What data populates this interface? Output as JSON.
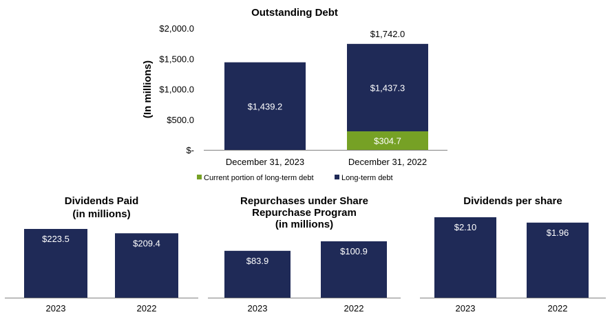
{
  "colors": {
    "navy": "#1f2a57",
    "green": "#76a125",
    "axis": "#808080"
  },
  "chart_data": [
    {
      "type": "bar",
      "stacked": true,
      "title": "Outstanding Debt",
      "ylabel": "(In millions)",
      "categories": [
        "December 31, 2023",
        "December 31, 2022"
      ],
      "series": [
        {
          "name": "Current portion of long-term debt",
          "values": [
            0,
            304.7
          ],
          "labels": [
            "",
            "$304.7"
          ]
        },
        {
          "name": "Long-term debt",
          "values": [
            1439.2,
            1437.3
          ],
          "labels": [
            "$1,439.2",
            "$1,437.3"
          ]
        }
      ],
      "totals": [
        1439.2,
        1742.0
      ],
      "total_labels": [
        "",
        "$1,742.0"
      ],
      "ylim": [
        0,
        2000
      ],
      "yticks": [
        0,
        500,
        1000,
        1500,
        2000
      ],
      "ytick_labels": [
        "$-",
        "$500.0",
        "$1,000.0",
        "$1,500.0",
        "$2,000.0"
      ],
      "legend": [
        "Current portion of long-term debt",
        "Long-term debt"
      ],
      "legend_position": "bottom"
    },
    {
      "type": "bar",
      "title_lines": [
        "Dividends Paid",
        "(in millions)"
      ],
      "categories": [
        "2023",
        "2022"
      ],
      "values": [
        223.5,
        209.4
      ],
      "labels": [
        "$223.5",
        "$209.4"
      ],
      "ylim": [
        0,
        243
      ]
    },
    {
      "type": "bar",
      "title_lines": [
        "Repurchases under Share",
        "Repurchase Program",
        "(in millions)"
      ],
      "categories": [
        "2023",
        "2022"
      ],
      "values": [
        83.9,
        100.9
      ],
      "labels": [
        "$83.9",
        "$100.9"
      ],
      "ylim": [
        0,
        121
      ]
    },
    {
      "type": "bar",
      "title_lines": [
        "Dividends per share"
      ],
      "categories": [
        "2023",
        "2022"
      ],
      "values": [
        2.1,
        1.96
      ],
      "labels": [
        "$2.10",
        "$1.96"
      ],
      "ylim": [
        0,
        2.28
      ]
    }
  ]
}
